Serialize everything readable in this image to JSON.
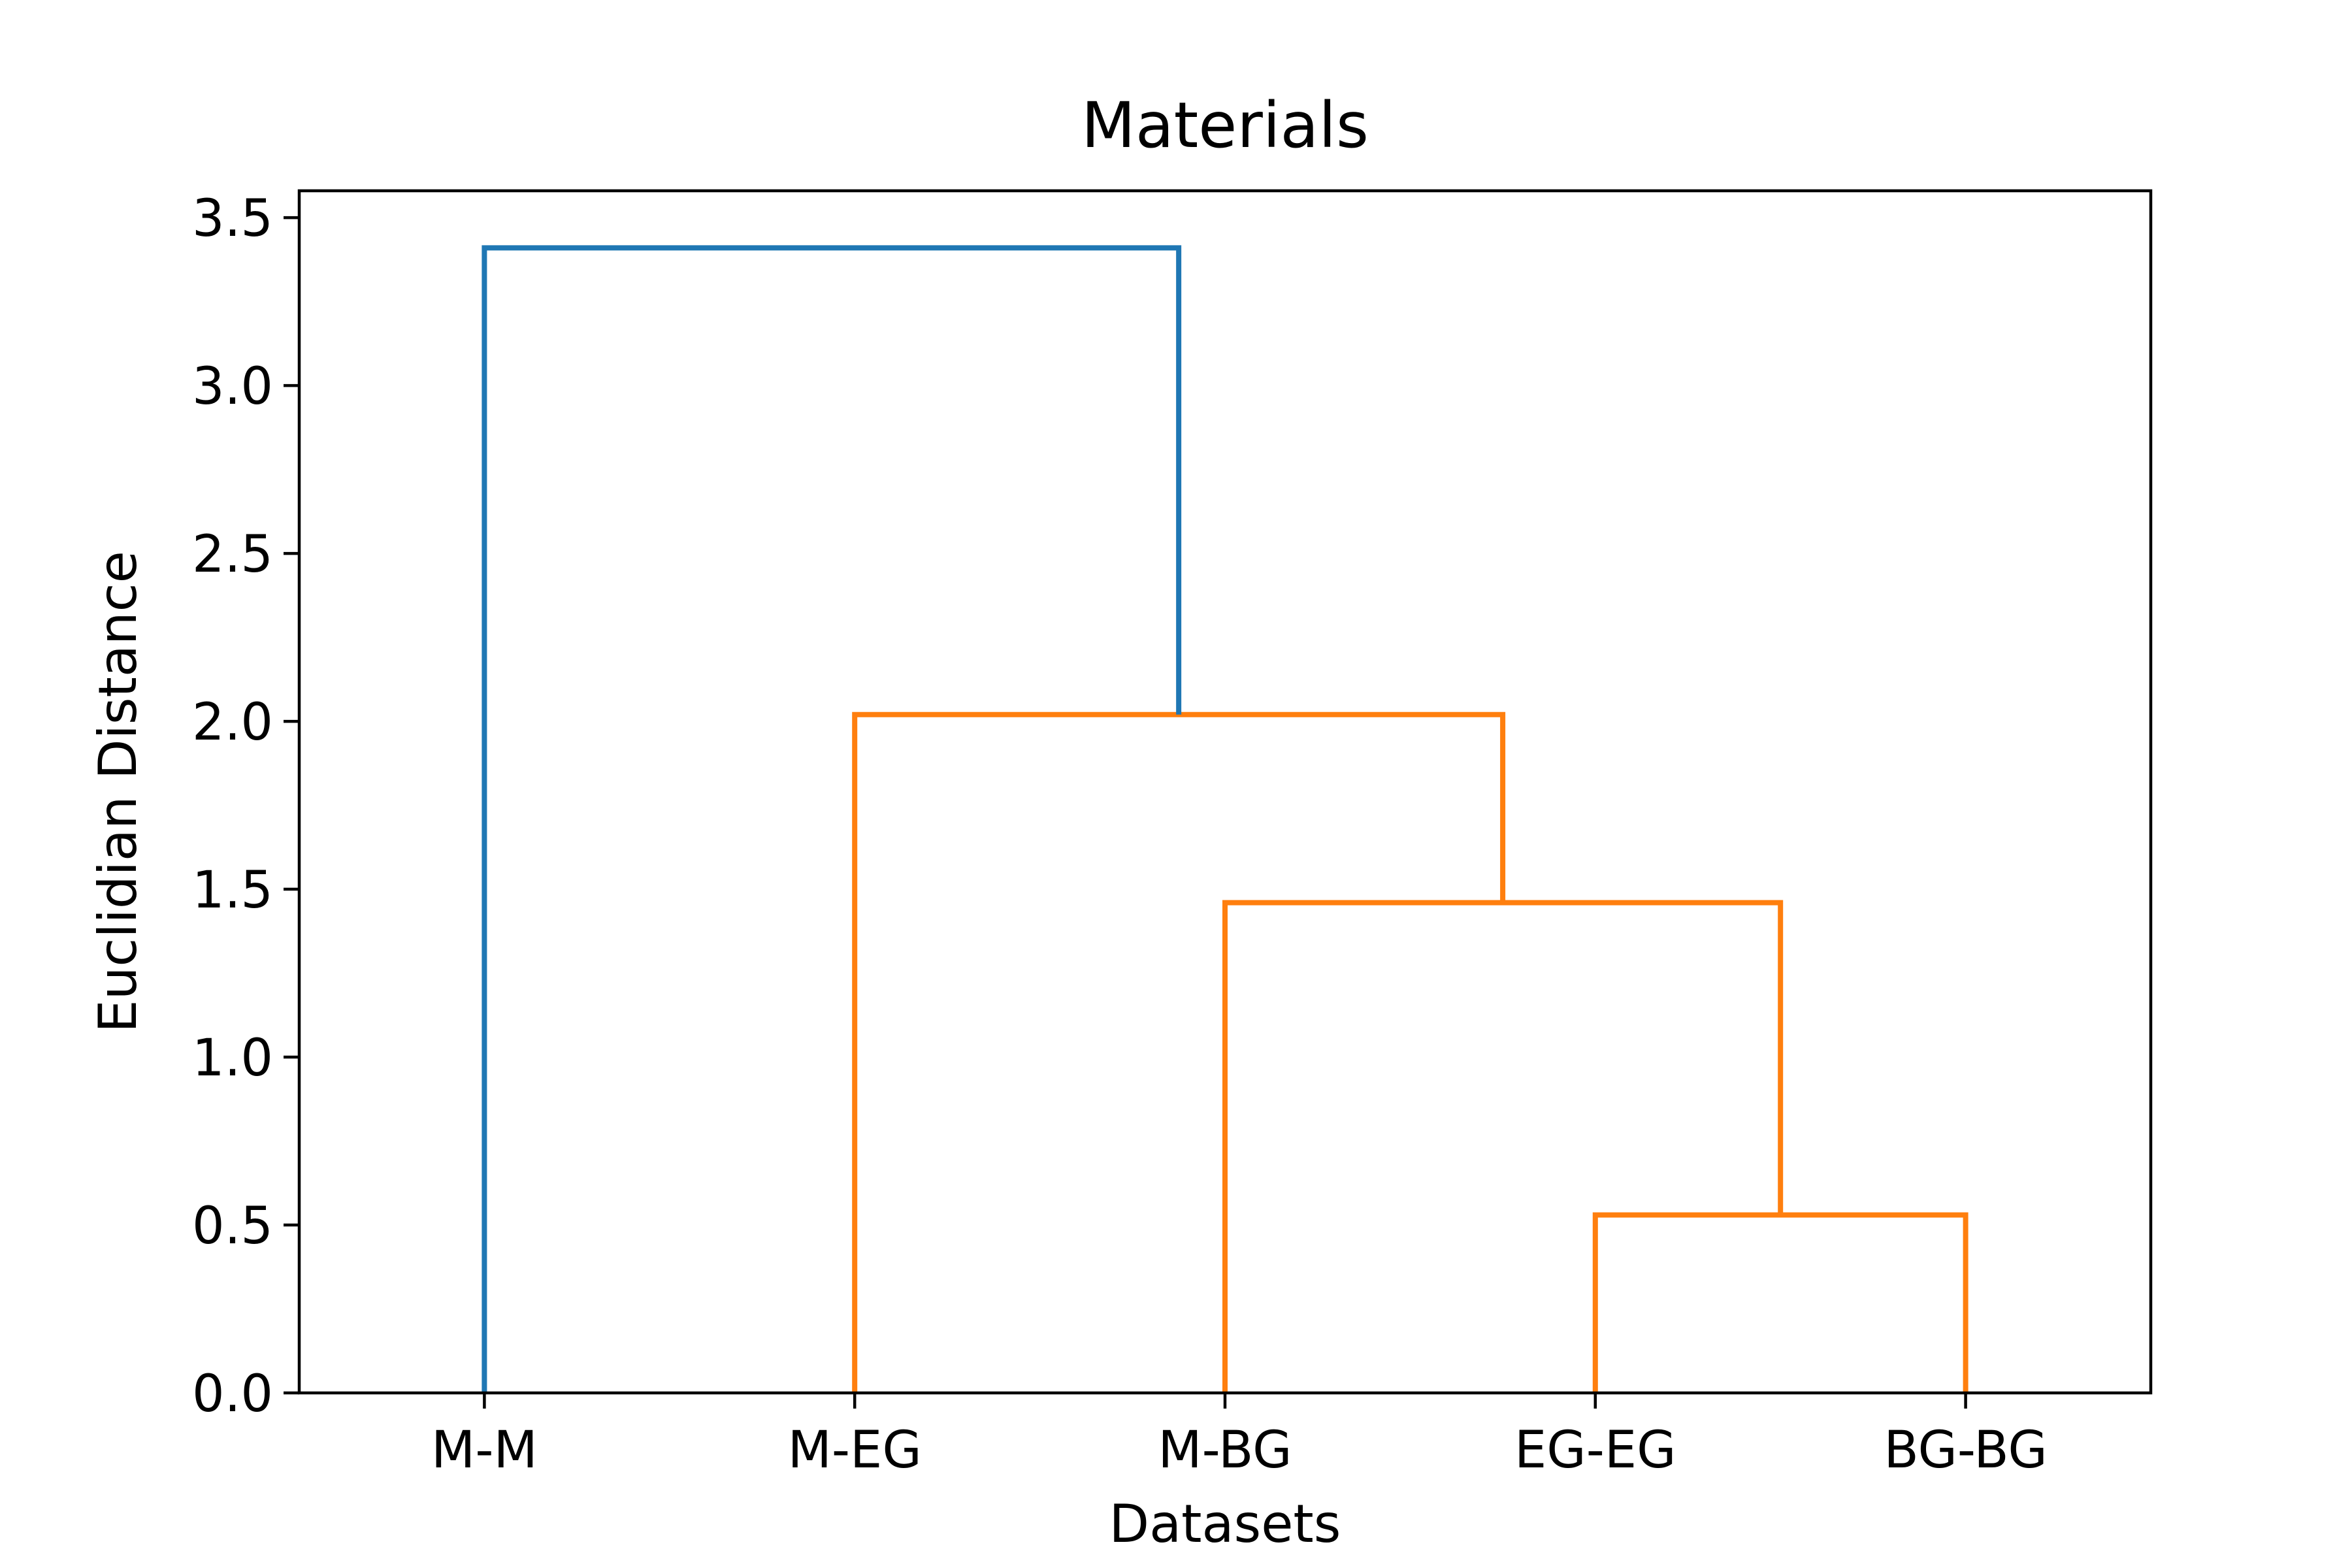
{
  "chart_data": {
    "type": "dendrogram",
    "title": "Materials",
    "xlabel": "Datasets",
    "ylabel": "Euclidian Distance",
    "leaves": [
      "M-M",
      "M-EG",
      "M-BG",
      "EG-EG",
      "BG-BG"
    ],
    "yticks": [
      0.0,
      0.5,
      1.0,
      1.5,
      2.0,
      2.5,
      3.0,
      3.5
    ],
    "ytick_labels": [
      "0.0",
      "0.5",
      "1.0",
      "1.5",
      "2.0",
      "2.5",
      "3.0",
      "3.5"
    ],
    "ylim": [
      0,
      3.58
    ],
    "grid": false,
    "colors": {
      "above_threshold": "#1f77b4",
      "cluster": "#ff7f0e"
    },
    "links": [
      {
        "left": "EG-EG",
        "right": "BG-BG",
        "distance": 0.53,
        "color": "#ff7f0e"
      },
      {
        "left": "M-BG",
        "right": "(EG-EG, BG-BG)",
        "distance": 1.46,
        "color": "#ff7f0e"
      },
      {
        "left": "M-EG",
        "right": "(M-BG, EG-EG, BG-BG)",
        "distance": 2.02,
        "color": "#ff7f0e"
      },
      {
        "left": "M-M",
        "right": "(M-EG, M-BG, EG-EG, BG-BG)",
        "distance": 3.41,
        "color": "#1f77b4"
      }
    ]
  }
}
